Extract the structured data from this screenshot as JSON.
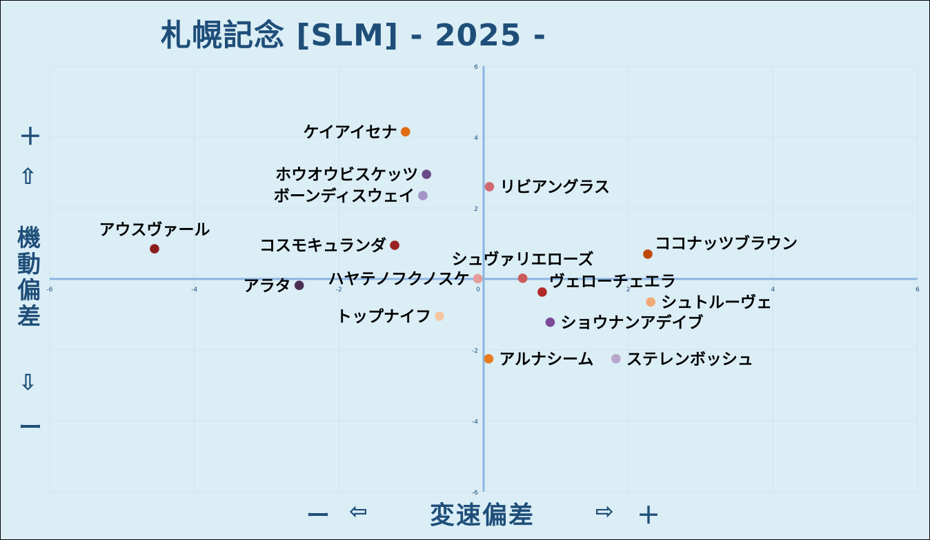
{
  "chart_data": {
    "type": "scatter",
    "title": "札幌記念 [SLM]  - 2025 -",
    "xlabel": "変速偏差",
    "ylabel": "機動偏差",
    "xlim": [
      -6,
      6
    ],
    "ylim": [
      -6,
      6
    ],
    "xticks": [
      "-6",
      "-4",
      "-2",
      "0",
      "2",
      "4",
      "6"
    ],
    "yticks": [
      "6",
      "4",
      "2",
      "0",
      "-2",
      "-4",
      "-6"
    ],
    "grid": true,
    "x_axis_markers": {
      "minus": "ー",
      "left_arrow": "⇦",
      "right_arrow": "⇨",
      "plus": "＋"
    },
    "y_axis_markers": {
      "plus": "＋",
      "up_arrow": "⇧",
      "down_arrow": "⇩",
      "minus": "ー"
    },
    "points": [
      {
        "name": "ケイアイセナ",
        "x": -1.08,
        "y": 4.15,
        "color": "#e06a10",
        "label_side": "left"
      },
      {
        "name": "ホウオウビスケッツ",
        "x": -0.79,
        "y": 2.95,
        "color": "#6a4a86",
        "label_side": "left"
      },
      {
        "name": "ボーンディスウェイ",
        "x": -0.84,
        "y": 2.35,
        "color": "#a596c6",
        "label_side": "left"
      },
      {
        "name": "リビアングラス",
        "x": 0.08,
        "y": 2.6,
        "color": "#d06870",
        "label_side": "right"
      },
      {
        "name": "アウスヴァール",
        "x": -4.55,
        "y": 0.85,
        "color": "#8a1e1e",
        "label_side": "above"
      },
      {
        "name": "コスモキュランダ",
        "x": -1.23,
        "y": 0.95,
        "color": "#9a2222",
        "label_side": "left"
      },
      {
        "name": "ココナッツブラウン",
        "x": 2.27,
        "y": 0.7,
        "color": "#c04a08",
        "label_side": "above-right"
      },
      {
        "name": "シュヴァリエローズ",
        "x": 0.54,
        "y": 0.02,
        "color": "#cc5a5a",
        "label_side": "above"
      },
      {
        "name": "ハヤテノフクノスケ",
        "x": -0.08,
        "y": 0.01,
        "color": "#e59b9b",
        "label_side": "left"
      },
      {
        "name": "アラタ",
        "x": -2.55,
        "y": -0.18,
        "color": "#4a2d52",
        "label_side": "left"
      },
      {
        "name": "ヴェローチェエラ",
        "x": 0.81,
        "y": -0.37,
        "color": "#b02828",
        "label_side": "above-right"
      },
      {
        "name": "シュトルーヴェ",
        "x": 2.31,
        "y": -0.65,
        "color": "#f3a976",
        "label_side": "right"
      },
      {
        "name": "トップナイフ",
        "x": -0.61,
        "y": -1.05,
        "color": "#f4c6a0",
        "label_side": "left"
      },
      {
        "name": "ショウナンアデイブ",
        "x": 0.92,
        "y": -1.22,
        "color": "#7a4a98",
        "label_side": "right"
      },
      {
        "name": "アルナシーム",
        "x": 0.07,
        "y": -2.25,
        "color": "#e87a1e",
        "label_side": "right"
      },
      {
        "name": "ステレンボッシュ",
        "x": 1.83,
        "y": -2.25,
        "color": "#b9a6cc",
        "label_side": "right"
      }
    ]
  }
}
